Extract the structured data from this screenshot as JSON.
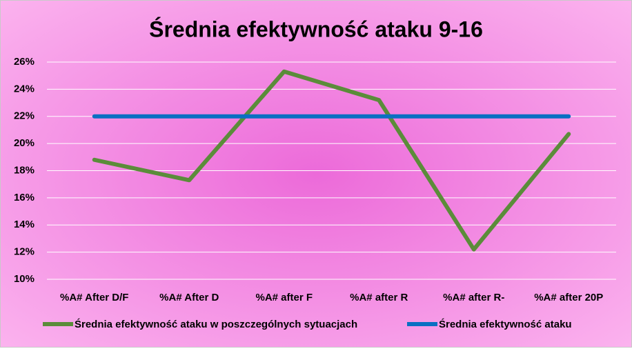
{
  "chart_data": {
    "type": "line",
    "title": "Średnia efektywność ataku 9-16",
    "categories": [
      "%A# After D/F",
      "%A# After D",
      "%A# after F",
      "%A# after R",
      "%A# after R-",
      "%A# after 20P"
    ],
    "series": [
      {
        "name": "Średnia efektywność ataku w poszczególnych sytuacjach",
        "color": "#5b8c3a",
        "values": [
          18.8,
          17.3,
          25.3,
          23.2,
          12.2,
          20.7
        ]
      },
      {
        "name": "Średnia efektywność ataku",
        "color": "#0a6fc2",
        "values": [
          22,
          22,
          22,
          22,
          22,
          22
        ]
      }
    ],
    "ylim": [
      10,
      26
    ],
    "yticks": [
      {
        "value": 10,
        "label": "10%"
      },
      {
        "value": 12,
        "label": "12%"
      },
      {
        "value": 14,
        "label": "14%"
      },
      {
        "value": 16,
        "label": "16%"
      },
      {
        "value": 18,
        "label": "18%"
      },
      {
        "value": 20,
        "label": "20%"
      },
      {
        "value": 22,
        "label": "22%"
      },
      {
        "value": 24,
        "label": "24%"
      },
      {
        "value": 26,
        "label": "26%"
      }
    ],
    "grid": true,
    "legend": "bottom"
  }
}
